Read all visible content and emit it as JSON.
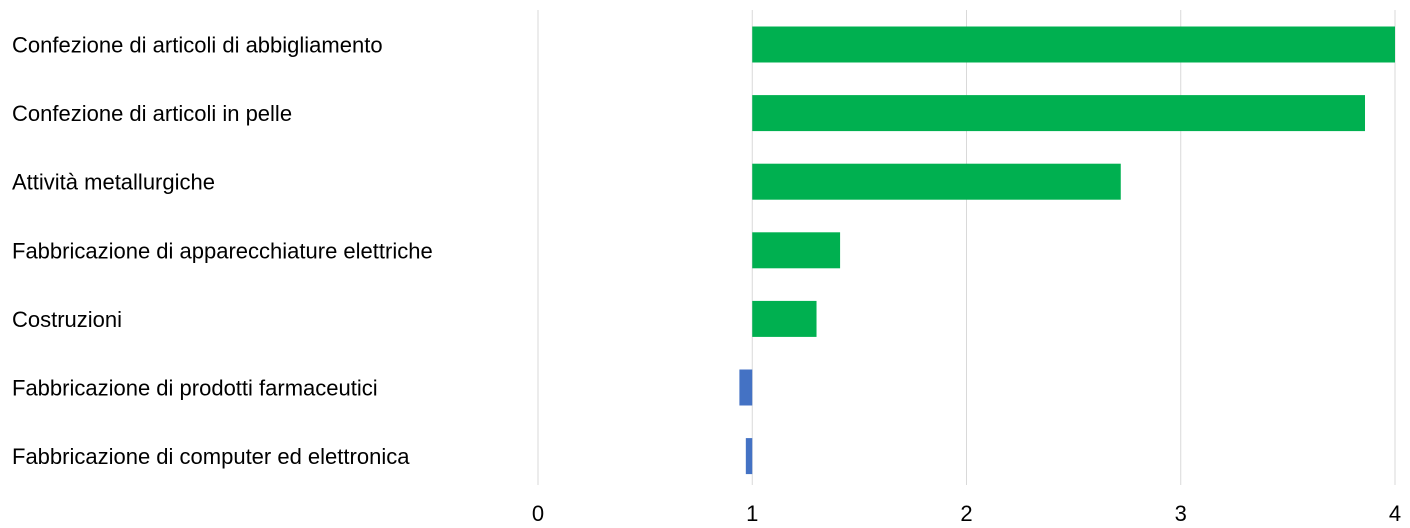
{
  "chart_data": {
    "type": "bar",
    "orientation": "horizontal",
    "categories": [
      "Confezione di articoli di abbigliamento",
      "Confezione di articoli in pelle",
      "Attività metallurgiche",
      "Fabbricazione di apparecchiature elettriche",
      "Costruzioni",
      "Fabbricazione di prodotti farmaceutici",
      "Fabbricazione di computer ed elettronica"
    ],
    "values": [
      4.0,
      3.86,
      2.72,
      1.41,
      1.3,
      0.94,
      0.97
    ],
    "baseline": 1,
    "xlim": [
      0,
      4
    ],
    "xticks": [
      "0",
      "1",
      "2",
      "3",
      "4"
    ],
    "grid": true,
    "legend": "none",
    "colors": {
      "above_baseline": "#00b050",
      "below_baseline": "#4472c4",
      "grid": "#d9d9d9"
    }
  }
}
